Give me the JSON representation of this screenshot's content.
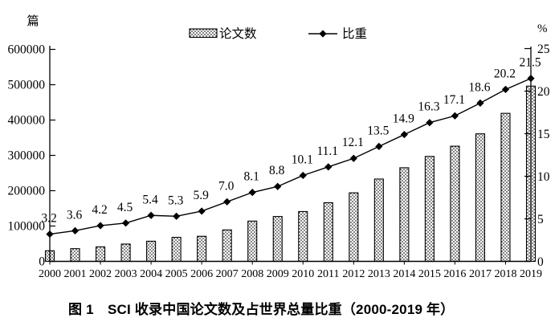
{
  "chart_data": {
    "type": "combo-bar-line",
    "caption": "图 1　SCI 收录中国论文数及占世界总量比重（2000-2019 年）",
    "categories": [
      "2000",
      "2001",
      "2002",
      "2003",
      "2004",
      "2005",
      "2006",
      "2007",
      "2008",
      "2009",
      "2010",
      "2011",
      "2012",
      "2013",
      "2014",
      "2015",
      "2016",
      "2017",
      "2018",
      "2019"
    ],
    "series": [
      {
        "name": "论文数",
        "type": "bar",
        "axis": "left",
        "values": [
          30000,
          36000,
          41000,
          49000,
          57000,
          68000,
          71000,
          89000,
          114000,
          127000,
          141000,
          166000,
          194000,
          233000,
          265000,
          297000,
          326000,
          361000,
          419000,
          496000
        ]
      },
      {
        "name": "比重",
        "type": "line",
        "axis": "right",
        "values": [
          3.2,
          3.6,
          4.2,
          4.5,
          5.4,
          5.3,
          5.9,
          7.0,
          8.1,
          8.8,
          10.1,
          11.1,
          12.1,
          13.5,
          14.9,
          16.3,
          17.1,
          18.6,
          20.2,
          21.5
        ],
        "point_labels": [
          "3.2",
          "3.6",
          "4.2",
          "4.5",
          "5.4",
          "5.3",
          "5.9",
          "7.0",
          "8.1",
          "8.8",
          "10.1",
          "11.1",
          "12.1",
          "13.5",
          "14.9",
          "16.3",
          "17.1",
          "18.6",
          "20.2",
          "21.5"
        ]
      }
    ],
    "left_axis": {
      "unit": "篇",
      "min": 0,
      "max": 600000,
      "tick_step": 100000,
      "tick_labels": [
        "0",
        "100000",
        "200000",
        "300000",
        "400000",
        "500000",
        "600000"
      ]
    },
    "right_axis": {
      "unit": "%",
      "min": 0,
      "max": 25,
      "tick_step": 5,
      "tick_labels": [
        "0",
        "5",
        "10",
        "15",
        "20",
        "25"
      ]
    },
    "legend": [
      {
        "label": "论文数",
        "marker": "dotted-bar-swatch"
      },
      {
        "label": "比重",
        "marker": "diamond-line"
      }
    ],
    "grid": false,
    "legend_position": "top-center",
    "colors": {
      "ink": "#000000",
      "background": "#ffffff"
    }
  }
}
